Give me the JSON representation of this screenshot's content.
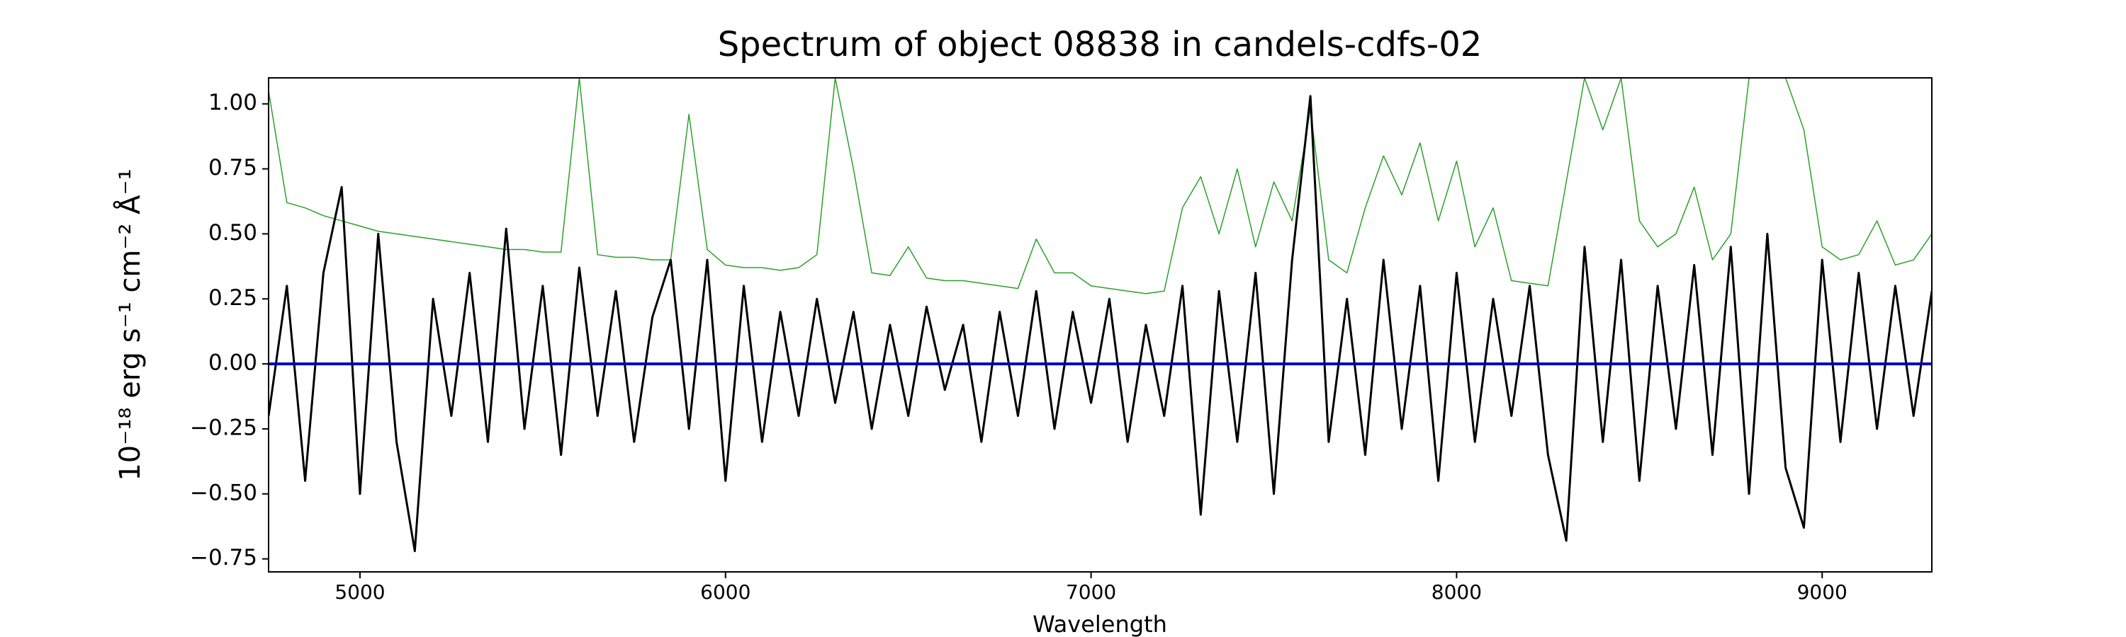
{
  "chart_data": {
    "type": "line",
    "title": "Spectrum of object 08838 in candels-cdfs-02",
    "xlabel": "Wavelength",
    "ylabel": "10⁻¹⁸ erg s⁻¹ cm⁻² Å⁻¹",
    "x": [
      4750,
      4800,
      4850,
      4900,
      4950,
      5000,
      5050,
      5100,
      5150,
      5200,
      5250,
      5300,
      5350,
      5400,
      5450,
      5500,
      5550,
      5600,
      5650,
      5700,
      5750,
      5800,
      5850,
      5900,
      5950,
      6000,
      6050,
      6100,
      6150,
      6200,
      6250,
      6300,
      6350,
      6400,
      6450,
      6500,
      6550,
      6600,
      6650,
      6700,
      6750,
      6800,
      6850,
      6900,
      6950,
      7000,
      7050,
      7100,
      7150,
      7200,
      7250,
      7300,
      7350,
      7400,
      7450,
      7500,
      7550,
      7600,
      7650,
      7700,
      7750,
      7800,
      7850,
      7900,
      7950,
      8000,
      8050,
      8100,
      8150,
      8200,
      8250,
      8300,
      8350,
      8400,
      8450,
      8500,
      8550,
      8600,
      8650,
      8700,
      8750,
      8800,
      8850,
      8900,
      8950,
      9000,
      9050,
      9100,
      9150,
      9200,
      9250,
      9300
    ],
    "series": [
      {
        "color": "#2ca02c",
        "values": [
          1.05,
          0.62,
          0.6,
          0.57,
          0.55,
          0.53,
          0.51,
          0.5,
          0.49,
          0.48,
          0.47,
          0.46,
          0.45,
          0.44,
          0.44,
          0.43,
          0.43,
          1.1,
          0.42,
          0.41,
          0.41,
          0.4,
          0.4,
          0.96,
          0.44,
          0.38,
          0.37,
          0.37,
          0.36,
          0.37,
          0.42,
          1.1,
          0.75,
          0.35,
          0.34,
          0.45,
          0.33,
          0.32,
          0.32,
          0.31,
          0.3,
          0.29,
          0.48,
          0.35,
          0.35,
          0.3,
          0.29,
          0.28,
          0.27,
          0.28,
          0.6,
          0.72,
          0.5,
          0.75,
          0.45,
          0.7,
          0.55,
          0.98,
          0.4,
          0.35,
          0.6,
          0.8,
          0.65,
          0.85,
          0.55,
          0.78,
          0.45,
          0.6,
          0.32,
          0.31,
          0.3,
          0.7,
          1.1,
          0.9,
          1.1,
          0.55,
          0.45,
          0.5,
          0.68,
          0.4,
          0.5,
          1.1,
          1.1,
          1.1,
          0.9,
          0.45,
          0.4,
          0.42,
          0.55,
          0.38,
          0.4,
          0.5
        ]
      },
      {
        "color": "#000000",
        "values": [
          -0.2,
          0.3,
          -0.45,
          0.35,
          0.68,
          -0.5,
          0.5,
          -0.3,
          -0.72,
          0.25,
          -0.2,
          0.35,
          -0.3,
          0.52,
          -0.25,
          0.3,
          -0.35,
          0.37,
          -0.2,
          0.28,
          -0.3,
          0.18,
          0.4,
          -0.25,
          0.4,
          -0.45,
          0.3,
          -0.3,
          0.2,
          -0.2,
          0.25,
          -0.15,
          0.2,
          -0.25,
          0.15,
          -0.2,
          0.22,
          -0.1,
          0.15,
          -0.3,
          0.2,
          -0.2,
          0.28,
          -0.25,
          0.2,
          -0.15,
          0.25,
          -0.3,
          0.15,
          -0.2,
          0.3,
          -0.58,
          0.28,
          -0.3,
          0.35,
          -0.5,
          0.4,
          1.03,
          -0.3,
          0.25,
          -0.35,
          0.4,
          -0.25,
          0.3,
          -0.45,
          0.35,
          -0.3,
          0.25,
          -0.2,
          0.3,
          -0.35,
          -0.68,
          0.45,
          -0.3,
          0.4,
          -0.45,
          0.3,
          -0.25,
          0.38,
          -0.35,
          0.45,
          -0.5,
          0.5,
          -0.4,
          -0.63,
          0.4,
          -0.3,
          0.35,
          -0.25,
          0.3,
          -0.2,
          0.28
        ]
      },
      {
        "color": "#0000bb",
        "values": [
          0,
          0,
          0,
          0,
          0,
          0,
          0,
          0,
          0,
          0,
          0,
          0,
          0,
          0,
          0,
          0,
          0,
          0,
          0,
          0,
          0,
          0,
          0,
          0,
          0,
          0,
          0,
          0,
          0,
          0,
          0,
          0,
          0,
          0,
          0,
          0,
          0,
          0,
          0,
          0,
          0,
          0,
          0,
          0,
          0,
          0,
          0,
          0,
          0,
          0,
          0,
          0,
          0,
          0,
          0,
          0,
          0,
          0,
          0,
          0,
          0,
          0,
          0,
          0,
          0,
          0,
          0,
          0,
          0,
          0,
          0,
          0,
          0,
          0,
          0,
          0,
          0,
          0,
          0,
          0,
          0,
          0,
          0,
          0,
          0,
          0,
          0,
          0,
          0,
          0,
          0,
          0
        ]
      }
    ],
    "xlim": [
      4750,
      9300
    ],
    "ylim": [
      -0.8,
      1.1
    ],
    "xticks": [
      5000,
      6000,
      7000,
      8000,
      9000
    ],
    "yticks": [
      {
        "value": -0.75,
        "label": "−0.75"
      },
      {
        "value": -0.5,
        "label": "−0.50"
      },
      {
        "value": -0.25,
        "label": "−0.25"
      },
      {
        "value": 0,
        "label": "0.00"
      },
      {
        "value": 0.25,
        "label": "0.25"
      },
      {
        "value": 0.5,
        "label": "0.50"
      },
      {
        "value": 0.75,
        "label": "0.75"
      },
      {
        "value": 1,
        "label": "1.00"
      }
    ],
    "grid": false
  }
}
